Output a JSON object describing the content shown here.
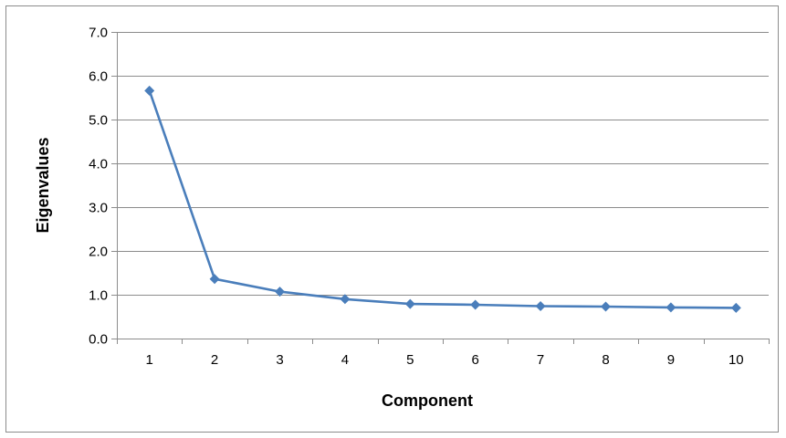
{
  "chart_data": {
    "type": "line",
    "xlabel": "Component",
    "ylabel": "Eigenvalues",
    "x": [
      1,
      2,
      3,
      4,
      5,
      6,
      7,
      8,
      9,
      10
    ],
    "series": [
      {
        "values": [
          5.66,
          1.36,
          1.07,
          0.9,
          0.79,
          0.77,
          0.74,
          0.73,
          0.71,
          0.7
        ],
        "color": "#4a7ebb",
        "marker": "diamond"
      }
    ],
    "ylim": [
      0,
      7
    ],
    "yticks": [
      "0.0",
      "1.0",
      "2.0",
      "3.0",
      "4.0",
      "5.0",
      "6.0",
      "7.0"
    ],
    "xticks": [
      "1",
      "2",
      "3",
      "4",
      "5",
      "6",
      "7",
      "8",
      "9",
      "10"
    ],
    "grid": true,
    "legend": "none"
  }
}
